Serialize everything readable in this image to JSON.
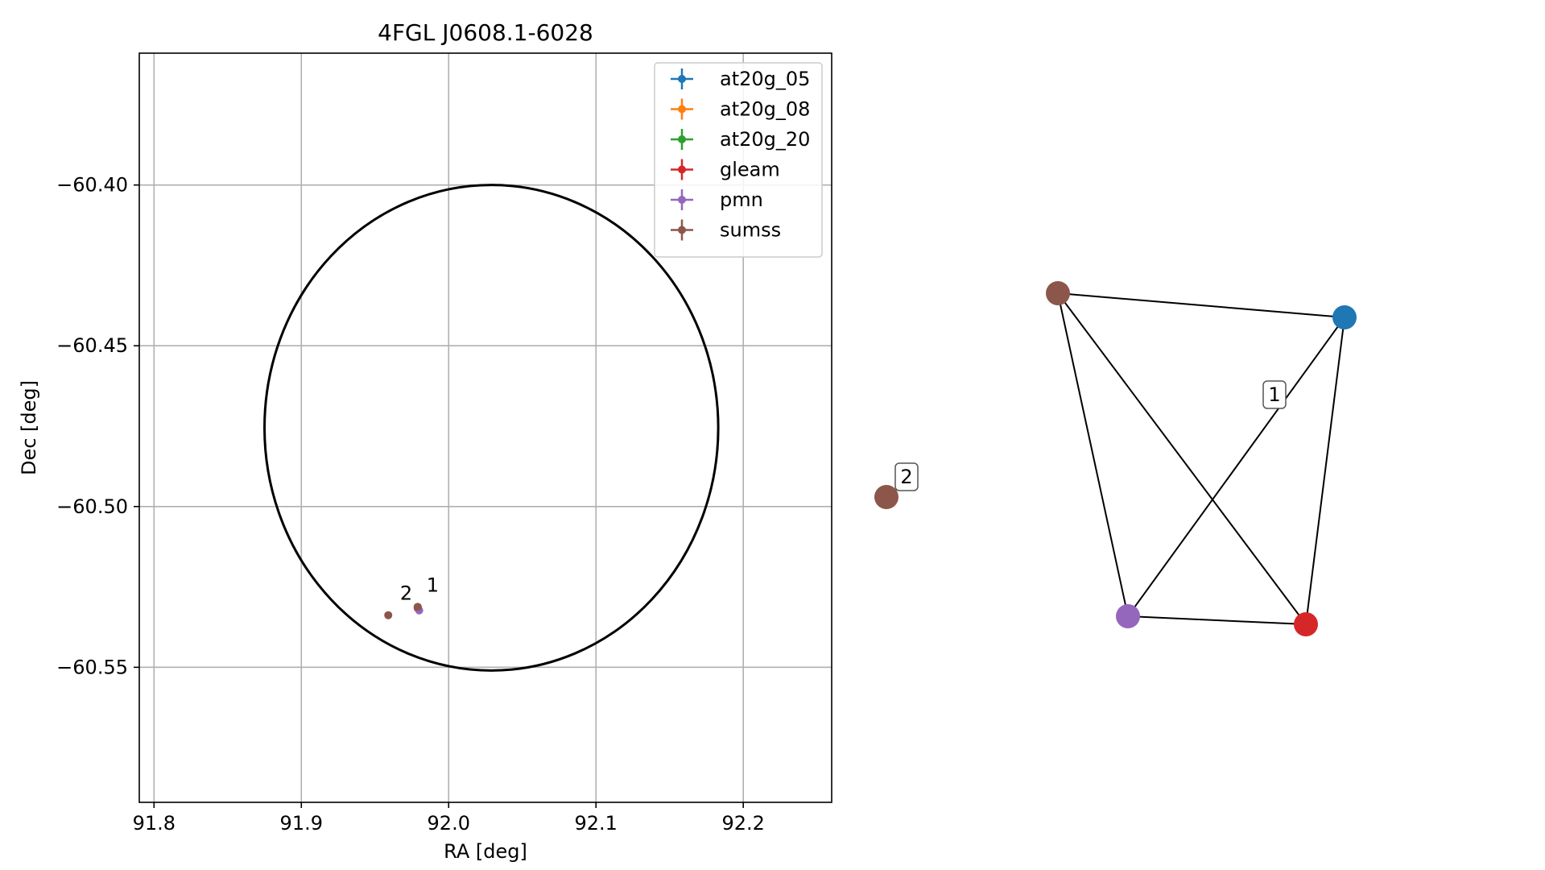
{
  "chart_data": [
    {
      "type": "scatter",
      "title": "4FGL J0608.1-6028",
      "xlabel": "RA [deg]",
      "ylabel": "Dec [deg]",
      "xlim": [
        91.79,
        92.26
      ],
      "ylim": [
        -60.592,
        -60.359
      ],
      "xticks": [
        91.8,
        91.9,
        92.0,
        92.1,
        92.2
      ],
      "xtick_labels": [
        "91.8",
        "91.9",
        "92.0",
        "92.1",
        "92.2"
      ],
      "yticks": [
        -60.4,
        -60.45,
        -60.5,
        -60.55
      ],
      "ytick_labels": [
        "−60.40",
        "−60.45",
        "−60.50",
        "−60.55"
      ],
      "grid": true,
      "legend_position": "top-right",
      "ellipse": {
        "center": [
          92.029,
          -60.4755
        ],
        "semi_axis_ra": 0.154,
        "semi_axis_dec": 0.0755
      },
      "series": [
        {
          "name": "at20g_05",
          "color": "#1f77b4",
          "points": [
            [
              91.979,
              -60.5313
            ]
          ]
        },
        {
          "name": "at20g_08",
          "color": "#ff7f0e",
          "points": [
            [
              91.979,
              -60.5313
            ]
          ]
        },
        {
          "name": "at20g_20",
          "color": "#2ca02c",
          "points": [
            [
              91.979,
              -60.5313
            ]
          ]
        },
        {
          "name": "gleam",
          "color": "#d62728",
          "points": [
            [
              91.979,
              -60.5316
            ]
          ]
        },
        {
          "name": "pmn",
          "color": "#9467bd",
          "points": [
            [
              91.98,
              -60.5323
            ]
          ]
        },
        {
          "name": "sumss",
          "color": "#8c564b",
          "points": [
            [
              91.979,
              -60.5312
            ],
            [
              91.959,
              -60.5338
            ]
          ]
        }
      ],
      "annotations": [
        {
          "text": "1",
          "at": [
            91.985,
            -60.5265
          ]
        },
        {
          "text": "2",
          "at": [
            91.967,
            -60.529
          ]
        }
      ]
    },
    {
      "type": "network",
      "nodes": [
        {
          "id": "sumss-1",
          "color": "#8c564b"
        },
        {
          "id": "at20g",
          "color": "#1f77b4"
        },
        {
          "id": "pmn",
          "color": "#9467bd"
        },
        {
          "id": "gleam",
          "color": "#d62728"
        },
        {
          "id": "sumss-2",
          "color": "#8c564b"
        }
      ],
      "edges": [
        [
          "sumss-1",
          "at20g"
        ],
        [
          "sumss-1",
          "pmn"
        ],
        [
          "sumss-1",
          "gleam"
        ],
        [
          "at20g",
          "pmn"
        ],
        [
          "at20g",
          "gleam"
        ],
        [
          "pmn",
          "gleam"
        ]
      ],
      "labels": [
        {
          "text": "1"
        },
        {
          "text": "2"
        }
      ]
    }
  ]
}
